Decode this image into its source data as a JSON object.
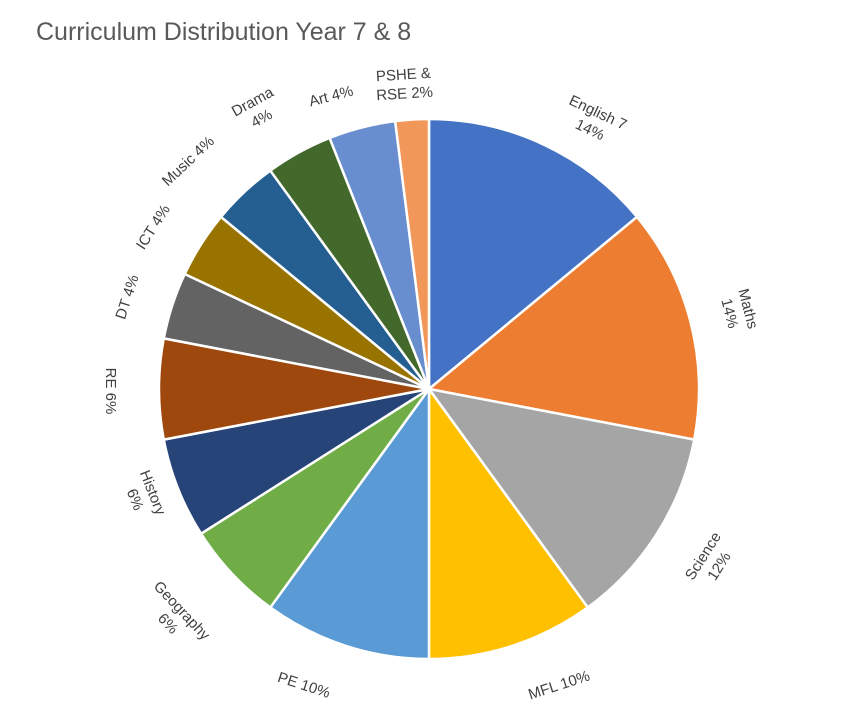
{
  "chart_data": {
    "type": "pie",
    "title": "Curriculum Distribution Year 7 & 8",
    "legend": "none",
    "slices": [
      {
        "name": "English 7",
        "value": 14,
        "label_lines": [
          "English 7",
          "14%"
        ],
        "color": "#4472C4"
      },
      {
        "name": "Maths",
        "value": 14,
        "label_lines": [
          "Maths",
          "14%"
        ],
        "color": "#ED7D31"
      },
      {
        "name": "Science",
        "value": 12,
        "label_lines": [
          "Science",
          "12%"
        ],
        "color": "#A5A5A5"
      },
      {
        "name": "MFL",
        "value": 10,
        "label_lines": [
          "MFL 10%"
        ],
        "color": "#FFC000"
      },
      {
        "name": "PE",
        "value": 10,
        "label_lines": [
          "PE 10%"
        ],
        "color": "#5B9BD5"
      },
      {
        "name": "Geography",
        "value": 6,
        "label_lines": [
          "Geography",
          "6%"
        ],
        "color": "#70AD47"
      },
      {
        "name": "History",
        "value": 6,
        "label_lines": [
          "History",
          "6%"
        ],
        "color": "#264478"
      },
      {
        "name": "RE",
        "value": 6,
        "label_lines": [
          "RE 6%"
        ],
        "color": "#9E480E"
      },
      {
        "name": "DT",
        "value": 4,
        "label_lines": [
          "DT 4%"
        ],
        "color": "#636363"
      },
      {
        "name": "ICT",
        "value": 4,
        "label_lines": [
          "ICT 4%"
        ],
        "color": "#997300"
      },
      {
        "name": "Music",
        "value": 4,
        "label_lines": [
          "Music 4%"
        ],
        "color": "#255E91"
      },
      {
        "name": "Drama",
        "value": 4,
        "label_lines": [
          "Drama",
          "4%"
        ],
        "color": "#43682B"
      },
      {
        "name": "Art",
        "value": 4,
        "label_lines": [
          "Art 4%"
        ],
        "color": "#698ED0"
      },
      {
        "name": "PSHE & RSE",
        "value": 2,
        "label_lines": [
          "PSHE &",
          "RSE 2%"
        ],
        "color": "#F1975A"
      }
    ]
  }
}
